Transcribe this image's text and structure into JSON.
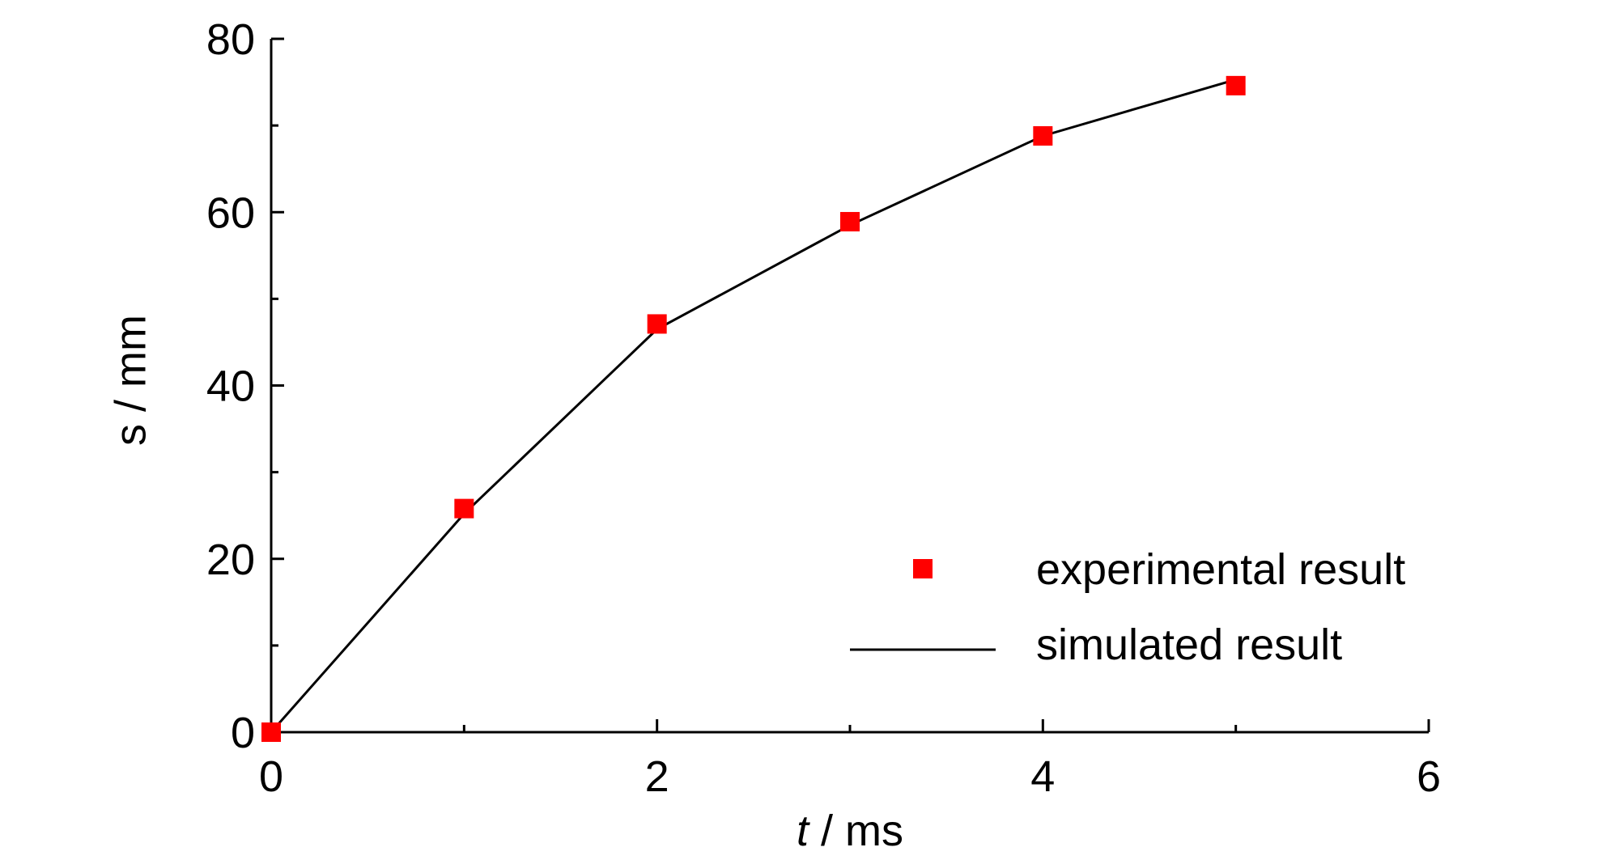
{
  "chart_data": {
    "type": "scatter",
    "xlabel_var": "t",
    "xlabel_unit": " / ms",
    "ylabel": "s / mm",
    "xlim": [
      0,
      6
    ],
    "ylim": [
      0,
      80
    ],
    "x_ticks": [
      0,
      2,
      4,
      6
    ],
    "y_ticks": [
      0,
      20,
      40,
      60,
      80
    ],
    "grid": false,
    "legend_position": "bottom-right",
    "series": [
      {
        "name": "experimental result",
        "kind": "marker",
        "color": "#ff0000",
        "x": [
          0,
          1,
          2,
          3,
          4,
          5
        ],
        "y": [
          0,
          25.8,
          47.1,
          58.9,
          68.8,
          74.6
        ]
      },
      {
        "name": "simulated result",
        "kind": "line",
        "color": "#000000",
        "x": [
          0,
          1,
          2,
          3,
          4,
          5
        ],
        "y": [
          0,
          25.2,
          46.5,
          58.5,
          68.8,
          75.3
        ]
      }
    ]
  }
}
